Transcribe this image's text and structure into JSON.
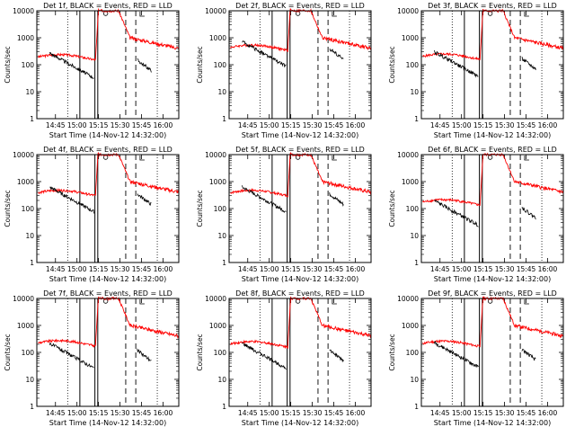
{
  "figure": {
    "layout": {
      "rows": 3,
      "cols": 3
    },
    "colors": {
      "events": "#000000",
      "lld": "#ff0000",
      "axes": "#000000",
      "background": "#ffffff"
    }
  },
  "chart_data": [
    {
      "type": "line",
      "title": "Det 1f, BLACK = Events, RED = LLD",
      "xlabel": "Start Time (14-Nov-12 14:32:00)",
      "ylabel": "Counts/sec",
      "xticks": [
        "14:45",
        "15:00",
        "15:15",
        "15:30",
        "15:45",
        "16:00"
      ],
      "yticks": [
        "1",
        "10",
        "100",
        "1000",
        "10000"
      ],
      "ylim": [
        1,
        10000
      ],
      "yscale": "log",
      "series": [
        {
          "name": "Events",
          "color": "#000000",
          "level": 150
        },
        {
          "name": "LLD",
          "color": "#ff0000",
          "level": 190
        }
      ]
    },
    {
      "type": "line",
      "title": "Det 2f, BLACK = Events, RED = LLD",
      "xlabel": "Start Time (14-Nov-12 14:32:00)",
      "ylabel": "Counts/sec",
      "xticks": [
        "14:45",
        "15:00",
        "15:15",
        "15:30",
        "15:45",
        "16:00"
      ],
      "yticks": [
        "1",
        "10",
        "100",
        "1000",
        "10000"
      ],
      "ylim": [
        1,
        10000
      ],
      "yscale": "log",
      "series": [
        {
          "name": "Events",
          "color": "#000000",
          "level": 400
        },
        {
          "name": "LLD",
          "color": "#ff0000",
          "level": 430
        }
      ]
    },
    {
      "type": "line",
      "title": "Det 3f, BLACK = Events, RED = LLD",
      "xlabel": "Start Time (14-Nov-12 14:32:00)",
      "ylabel": "Counts/sec",
      "xticks": [
        "14:45",
        "15:00",
        "15:15",
        "15:30",
        "15:45",
        "16:00"
      ],
      "yticks": [
        "1",
        "10",
        "100",
        "1000",
        "10000"
      ],
      "ylim": [
        1,
        10000
      ],
      "yscale": "log",
      "series": [
        {
          "name": "Events",
          "color": "#000000",
          "level": 170
        },
        {
          "name": "LLD",
          "color": "#ff0000",
          "level": 200
        }
      ]
    },
    {
      "type": "line",
      "title": "Det 4f, BLACK = Events, RED = LLD",
      "xlabel": "Start Time (14-Nov-12 14:32:00)",
      "ylabel": "Counts/sec",
      "xticks": [
        "14:45",
        "15:00",
        "15:15",
        "15:30",
        "15:45",
        "16:00"
      ],
      "yticks": [
        "1",
        "10",
        "100",
        "1000",
        "10000"
      ],
      "ylim": [
        1,
        10000
      ],
      "yscale": "log",
      "series": [
        {
          "name": "Events",
          "color": "#000000",
          "level": 350
        },
        {
          "name": "LLD",
          "color": "#ff0000",
          "level": 380
        }
      ]
    },
    {
      "type": "line",
      "title": "Det 5f, BLACK = Events, RED = LLD",
      "xlabel": "Start Time (14-Nov-12 14:32:00)",
      "ylabel": "Counts/sec",
      "xticks": [
        "14:45",
        "15:00",
        "15:15",
        "15:30",
        "15:45",
        "16:00"
      ],
      "yticks": [
        "1",
        "10",
        "100",
        "1000",
        "10000"
      ],
      "ylim": [
        1,
        10000
      ],
      "yscale": "log",
      "series": [
        {
          "name": "Events",
          "color": "#000000",
          "level": 350
        },
        {
          "name": "LLD",
          "color": "#ff0000",
          "level": 380
        }
      ]
    },
    {
      "type": "line",
      "title": "Det 6f, BLACK = Events, RED = LLD",
      "xlabel": "Start Time (14-Nov-12 14:32:00)",
      "ylabel": "Counts/sec",
      "xticks": [
        "14:45",
        "15:00",
        "15:15",
        "15:30",
        "15:45",
        "16:00"
      ],
      "yticks": [
        "1",
        "10",
        "100",
        "1000",
        "10000"
      ],
      "ylim": [
        1,
        10000
      ],
      "yscale": "log",
      "series": [
        {
          "name": "Events",
          "color": "#000000",
          "level": 110
        },
        {
          "name": "LLD",
          "color": "#ff0000",
          "level": 170
        }
      ]
    },
    {
      "type": "line",
      "title": "Det 7f, BLACK = Events, RED = LLD",
      "xlabel": "Start Time (14-Nov-12 14:32:00)",
      "ylabel": "Counts/sec",
      "xticks": [
        "14:45",
        "15:00",
        "15:15",
        "15:30",
        "15:45",
        "16:00"
      ],
      "yticks": [
        "1",
        "10",
        "100",
        "1000",
        "10000"
      ],
      "ylim": [
        1,
        10000
      ],
      "yscale": "log",
      "series": [
        {
          "name": "Events",
          "color": "#000000",
          "level": 120
        },
        {
          "name": "LLD",
          "color": "#ff0000",
          "level": 220
        }
      ]
    },
    {
      "type": "line",
      "title": "Det 8f, BLACK = Events, RED = LLD",
      "xlabel": "Start Time (14-Nov-12 14:32:00)",
      "ylabel": "Counts/sec",
      "xticks": [
        "14:45",
        "15:00",
        "15:15",
        "15:30",
        "15:45",
        "16:00"
      ],
      "yticks": [
        "1",
        "10",
        "100",
        "1000",
        "10000"
      ],
      "ylim": [
        1,
        10000
      ],
      "yscale": "log",
      "series": [
        {
          "name": "Events",
          "color": "#000000",
          "level": 120
        },
        {
          "name": "LLD",
          "color": "#ff0000",
          "level": 200
        }
      ]
    },
    {
      "type": "line",
      "title": "Det 9f, BLACK = Events, RED = LLD",
      "xlabel": "Start Time (14-Nov-12 14:32:00)",
      "ylabel": "Counts/sec",
      "xticks": [
        "14:45",
        "15:00",
        "15:15",
        "15:30",
        "15:45",
        "16:00"
      ],
      "yticks": [
        "1",
        "10",
        "100",
        "1000",
        "10000"
      ],
      "ylim": [
        1,
        10000
      ],
      "yscale": "log",
      "series": [
        {
          "name": "Events",
          "color": "#000000",
          "level": 130
        },
        {
          "name": "LLD",
          "color": "#ff0000",
          "level": 210
        }
      ]
    }
  ]
}
